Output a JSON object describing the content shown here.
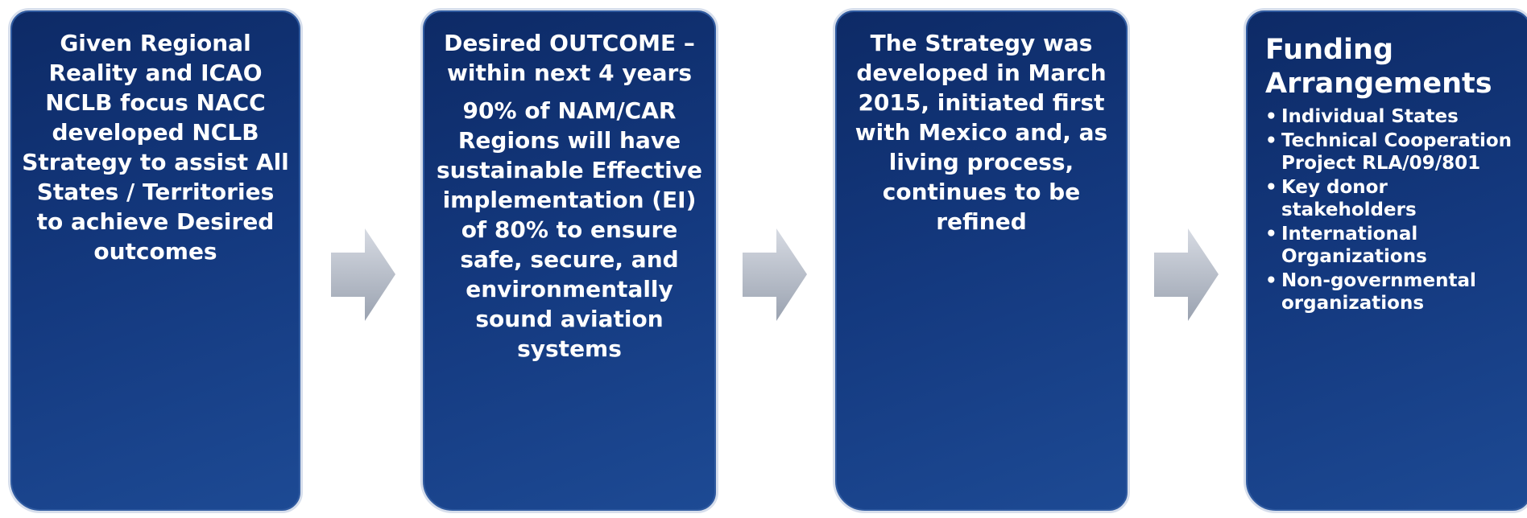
{
  "boxes": [
    {
      "lines": [
        "Given Regional",
        "Reality and ICAO",
        "NCLB focus NACC",
        "developed NCLB",
        "Strategy to assist All",
        "States / Territories",
        "to achieve Desired",
        "outcomes"
      ]
    },
    {
      "heading": [
        "Desired OUTCOME –",
        "within next 4 years"
      ],
      "lines": [
        "90%  of NAM/CAR",
        "Regions will have",
        "sustainable Effective",
        "implementation (EI)",
        "of 80% to ensure",
        "safe, secure, and",
        "environmentally",
        "sound aviation",
        "systems"
      ]
    },
    {
      "lines": [
        "The Strategy was",
        "developed in March",
        "2015, initiated first",
        "with Mexico and, as",
        "living process,",
        "continues to be",
        "refined"
      ]
    },
    {
      "title": [
        "Funding",
        "Arrangements"
      ],
      "items": [
        [
          "Individual States"
        ],
        [
          "Technical Cooperation",
          "Project RLA/09/801"
        ],
        [
          "Key donor",
          "stakeholders"
        ],
        [
          "International",
          "Organizations"
        ],
        [
          "Non-governmental",
          "organizations"
        ]
      ]
    }
  ]
}
